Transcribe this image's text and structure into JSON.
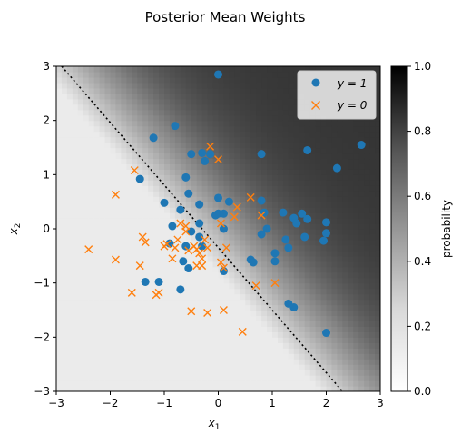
{
  "chart_data": {
    "type": "scatter",
    "title": "Posterior Mean Weights",
    "xlabel": "x",
    "xlabel_sub": "1",
    "ylabel": "x",
    "ylabel_sub": "2",
    "xlim": [
      -3,
      3
    ],
    "ylim": [
      -3,
      3
    ],
    "xticks": [
      -3,
      -2,
      -1,
      0,
      1,
      2,
      3
    ],
    "yticks": [
      -3,
      -2,
      -1,
      0,
      1,
      2,
      3
    ],
    "grid": false,
    "legend_position": "top-right",
    "background": {
      "type": "probability-heatmap",
      "colormap": "Greys",
      "decision_boundary": {
        "style": "dotted",
        "points": [
          [
            -2.9,
            3.0
          ],
          [
            2.3,
            -3.0
          ]
        ]
      }
    },
    "colorbar": {
      "label": "probability",
      "min": 0.0,
      "max": 1.0,
      "ticks": [
        "0.0",
        "0.2",
        "0.4",
        "0.6",
        "0.8",
        "1.0"
      ]
    },
    "series": [
      {
        "name": "y = 1",
        "legend_label": "y = 1",
        "marker": "circle",
        "color": "#1f77b4",
        "points": [
          [
            0.0,
            2.85
          ],
          [
            -0.8,
            1.9
          ],
          [
            -1.2,
            1.68
          ],
          [
            -0.5,
            1.38
          ],
          [
            -0.3,
            1.4
          ],
          [
            -0.15,
            1.38
          ],
          [
            -0.25,
            1.25
          ],
          [
            -0.6,
            0.95
          ],
          [
            -1.45,
            0.92
          ],
          [
            -0.55,
            0.65
          ],
          [
            -0.35,
            0.45
          ],
          [
            -1.0,
            0.48
          ],
          [
            -0.7,
            0.35
          ],
          [
            0.0,
            0.57
          ],
          [
            0.2,
            0.5
          ],
          [
            -0.85,
            0.05
          ],
          [
            -0.5,
            -0.05
          ],
          [
            -0.35,
            0.1
          ],
          [
            0.0,
            0.28
          ],
          [
            0.1,
            0.28
          ],
          [
            -0.05,
            0.25
          ],
          [
            0.1,
            0.0
          ],
          [
            -0.9,
            -0.27
          ],
          [
            -0.6,
            -0.32
          ],
          [
            -0.3,
            -0.32
          ],
          [
            -0.35,
            -0.15
          ],
          [
            -0.65,
            -0.6
          ],
          [
            -0.55,
            -0.73
          ],
          [
            -1.35,
            -0.98
          ],
          [
            -1.1,
            -0.98
          ],
          [
            -0.7,
            -1.12
          ],
          [
            0.1,
            -0.78
          ],
          [
            0.6,
            -0.57
          ],
          [
            0.65,
            -0.62
          ],
          [
            0.8,
            1.38
          ],
          [
            0.8,
            0.52
          ],
          [
            0.85,
            0.3
          ],
          [
            0.9,
            0.0
          ],
          [
            0.8,
            -0.1
          ],
          [
            1.05,
            -0.45
          ],
          [
            1.05,
            -0.6
          ],
          [
            1.2,
            0.3
          ],
          [
            1.25,
            -0.2
          ],
          [
            1.3,
            -0.35
          ],
          [
            1.4,
            0.2
          ],
          [
            1.45,
            0.1
          ],
          [
            1.55,
            0.28
          ],
          [
            1.6,
            -0.15
          ],
          [
            1.65,
            0.18
          ],
          [
            1.65,
            1.45
          ],
          [
            2.2,
            1.12
          ],
          [
            2.65,
            1.55
          ],
          [
            2.0,
            0.12
          ],
          [
            2.0,
            -0.08
          ],
          [
            1.95,
            -0.22
          ],
          [
            1.3,
            -1.38
          ],
          [
            1.4,
            -1.45
          ],
          [
            2.0,
            -1.92
          ]
        ]
      },
      {
        "name": "y = 0",
        "legend_label": "y = 0",
        "marker": "x",
        "color": "#ff7f0e",
        "points": [
          [
            -2.4,
            -0.38
          ],
          [
            -1.9,
            0.63
          ],
          [
            -1.9,
            -0.57
          ],
          [
            -1.55,
            1.08
          ],
          [
            -1.6,
            -1.18
          ],
          [
            -1.45,
            -0.68
          ],
          [
            -1.4,
            -0.15
          ],
          [
            -1.35,
            -0.25
          ],
          [
            -1.15,
            -1.22
          ],
          [
            -1.1,
            -1.18
          ],
          [
            -1.0,
            -0.32
          ],
          [
            -0.95,
            -0.28
          ],
          [
            -0.85,
            -0.55
          ],
          [
            -0.8,
            -0.35
          ],
          [
            -0.7,
            0.1
          ],
          [
            -0.6,
            0.05
          ],
          [
            -0.6,
            -0.05
          ],
          [
            -0.55,
            -0.4
          ],
          [
            -0.5,
            -1.52
          ],
          [
            -0.45,
            -0.32
          ],
          [
            -0.4,
            -0.38
          ],
          [
            -0.4,
            -0.68
          ],
          [
            -0.35,
            -0.45
          ],
          [
            -0.3,
            -0.68
          ],
          [
            -0.3,
            -0.55
          ],
          [
            -0.25,
            -0.2
          ],
          [
            -0.2,
            -0.35
          ],
          [
            -0.15,
            1.52
          ],
          [
            -0.2,
            -1.55
          ],
          [
            0.0,
            1.28
          ],
          [
            0.05,
            0.1
          ],
          [
            0.05,
            -0.62
          ],
          [
            0.1,
            -0.72
          ],
          [
            0.1,
            -1.5
          ],
          [
            0.15,
            -0.35
          ],
          [
            0.3,
            0.22
          ],
          [
            0.35,
            0.4
          ],
          [
            0.45,
            -1.9
          ],
          [
            0.6,
            0.58
          ],
          [
            0.7,
            -1.05
          ],
          [
            0.8,
            0.25
          ],
          [
            1.05,
            -1.0
          ],
          [
            -0.75,
            -0.2
          ]
        ]
      }
    ]
  }
}
